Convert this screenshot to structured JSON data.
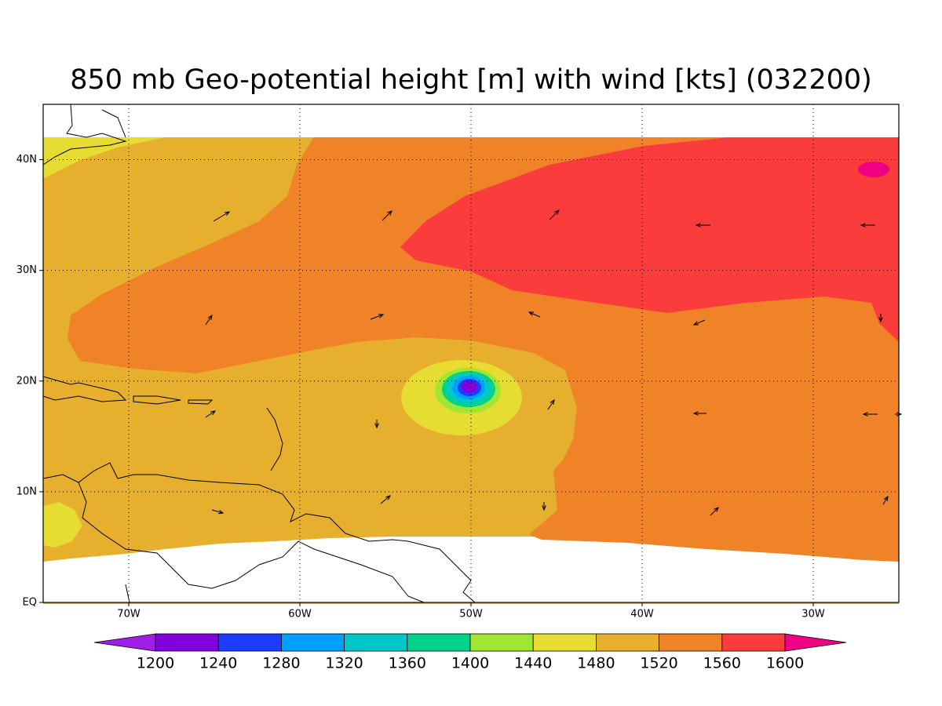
{
  "title": "850 mb Geo-potential height [m] with wind [kts] (032200)",
  "lonlim": [
    -75,
    -25
  ],
  "latlim": [
    0,
    45
  ],
  "lat_ticks": [
    {
      "value": 0,
      "label": "EQ"
    },
    {
      "value": 10,
      "label": "10N"
    },
    {
      "value": 20,
      "label": "20N"
    },
    {
      "value": 30,
      "label": "30N"
    },
    {
      "value": 40,
      "label": "40N"
    }
  ],
  "lon_ticks": [
    {
      "value": -70,
      "label": "70W"
    },
    {
      "value": -60,
      "label": "60W"
    },
    {
      "value": -50,
      "label": "50W"
    },
    {
      "value": -40,
      "label": "40W"
    },
    {
      "value": -30,
      "label": "30W"
    }
  ],
  "colorbar": {
    "levels": [
      1200,
      1240,
      1280,
      1320,
      1360,
      1400,
      1440,
      1480,
      1520,
      1560,
      1600
    ],
    "colors": [
      "#a01ee6",
      "#8200dc",
      "#1e3cff",
      "#00a0ff",
      "#00c8c8",
      "#00d28c",
      "#a0e632",
      "#e6dc32",
      "#e6af2d",
      "#f08228",
      "#fa3c3c",
      "#f00082"
    ]
  }
}
